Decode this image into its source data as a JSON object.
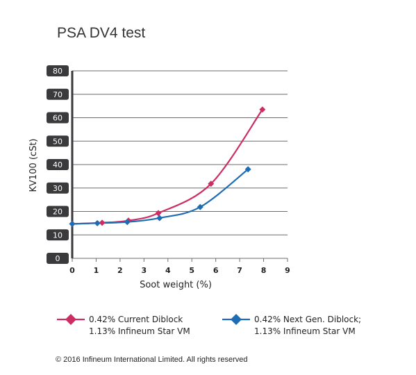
{
  "chart_data": {
    "type": "line",
    "title": "PSA DV4 test",
    "xlabel": "Soot weight (%)",
    "ylabel": "KV100 (cSt)",
    "xlim": [
      0,
      9
    ],
    "ylim": [
      0,
      80
    ],
    "x_ticks": [
      "0",
      "1",
      "2",
      "3",
      "4",
      "5",
      "6",
      "7",
      "8",
      "9"
    ],
    "y_ticks": [
      "0",
      "10",
      "20",
      "30",
      "40",
      "50",
      "60",
      "70",
      "80"
    ],
    "grid": "horizontal",
    "legend_position": "bottom",
    "series": [
      {
        "name_line1": "0.42% Current Diblock",
        "name_line2": "1.13% Infineum Star VM",
        "color": "#cc2e63",
        "marker": "diamond",
        "points": [
          {
            "x": 0,
            "y": 14.7
          },
          {
            "x": 1.25,
            "y": 15.2
          },
          {
            "x": 2.35,
            "y": 16.1
          },
          {
            "x": 3.6,
            "y": 19.3
          },
          {
            "x": 5.8,
            "y": 31.8
          },
          {
            "x": 7.95,
            "y": 63.5
          }
        ]
      },
      {
        "name_line1": "0.42% Next Gen. Diblock;",
        "name_line2": "1.13% Infineum Star VM",
        "color": "#1d6cb4",
        "marker": "diamond",
        "points": [
          {
            "x": 0,
            "y": 14.7
          },
          {
            "x": 1.05,
            "y": 15.0
          },
          {
            "x": 2.3,
            "y": 15.5
          },
          {
            "x": 3.65,
            "y": 17.2
          },
          {
            "x": 5.35,
            "y": 21.9
          },
          {
            "x": 7.35,
            "y": 38.0
          }
        ]
      }
    ]
  },
  "footer": {
    "copyright": "© 2016 Infineum International Limited. All rights reserved"
  }
}
